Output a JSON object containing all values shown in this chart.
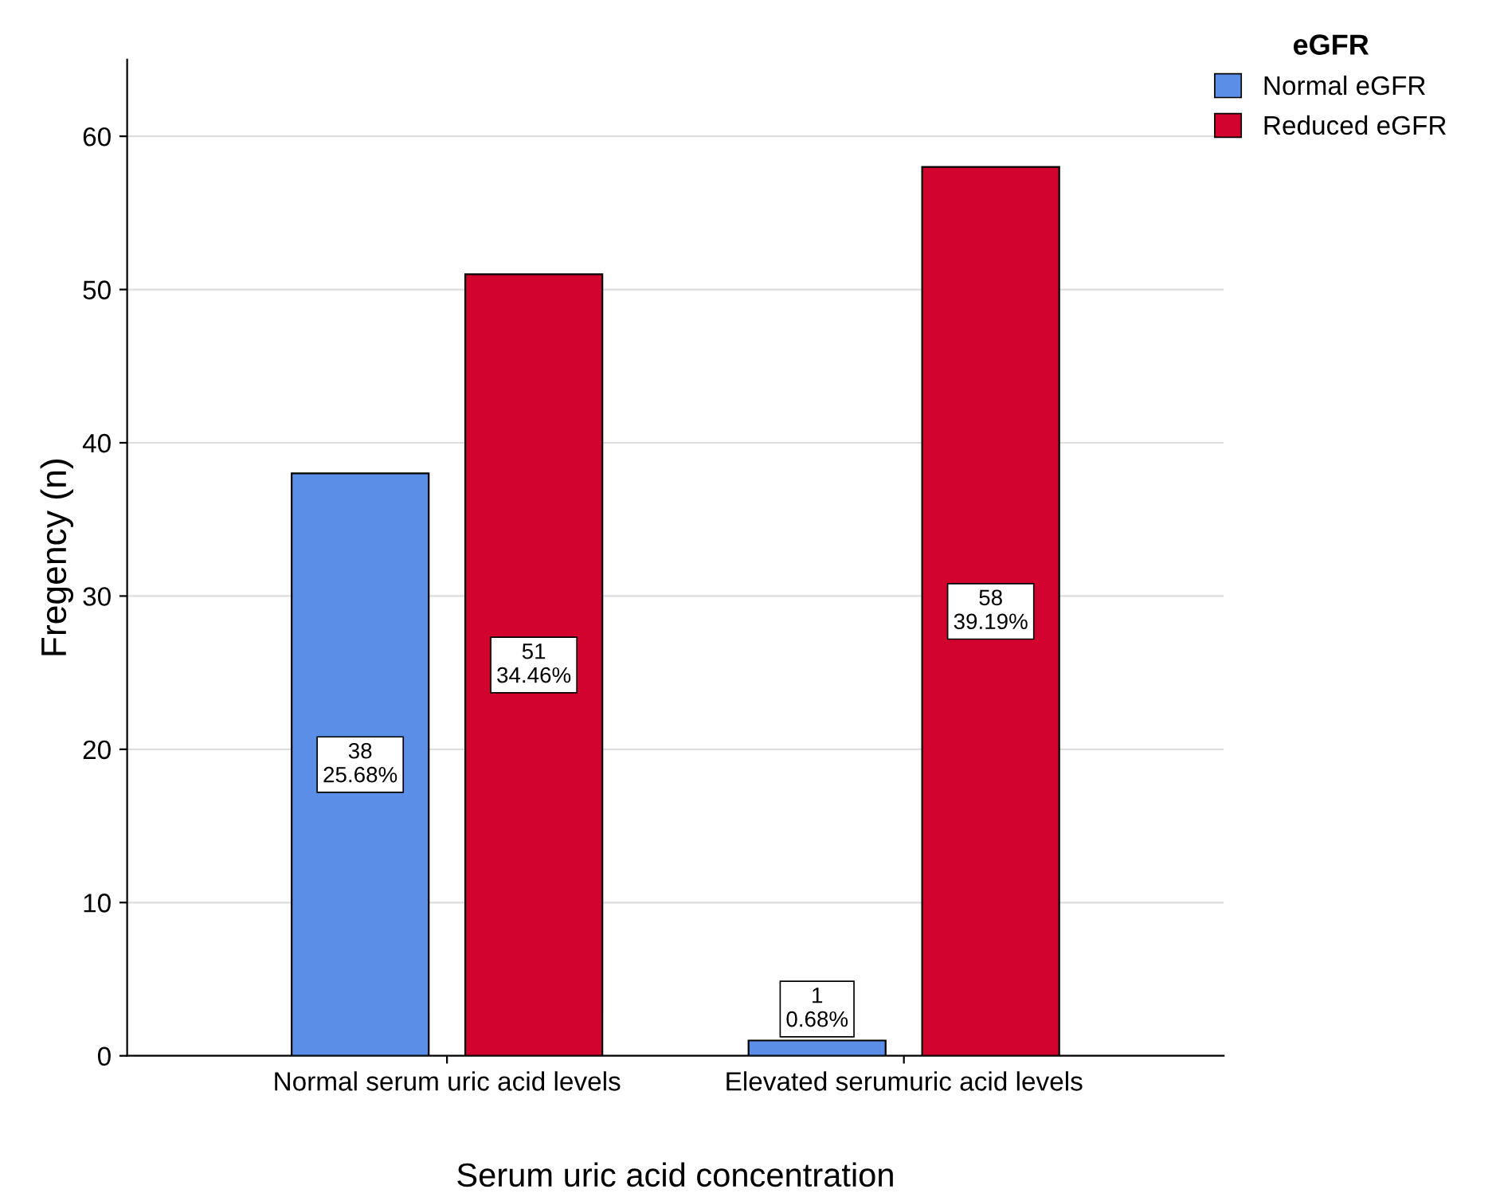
{
  "chart_data": {
    "type": "bar",
    "xlabel": "Serum uric acid concentration",
    "ylabel": "Fregency (n)",
    "legend_title": "eGFR",
    "categories": [
      "Normal serum uric acid levels",
      "Elevated serumuric acid levels"
    ],
    "series": [
      {
        "name": "Normal eGFR",
        "color": "#5b8ee6",
        "values": [
          38,
          1
        ],
        "value_labels": [
          "38\n25.68%",
          "1\n0.68%"
        ]
      },
      {
        "name": "Reduced eGFR",
        "color": "#d2042d",
        "values": [
          51,
          58
        ],
        "value_labels": [
          "51\n34.46%",
          "58\n39.19%"
        ]
      }
    ],
    "ylim": [
      0,
      65
    ],
    "yticks": [
      0,
      10,
      20,
      30,
      40,
      50,
      60
    ],
    "grid": "y",
    "legend": "top right"
  }
}
